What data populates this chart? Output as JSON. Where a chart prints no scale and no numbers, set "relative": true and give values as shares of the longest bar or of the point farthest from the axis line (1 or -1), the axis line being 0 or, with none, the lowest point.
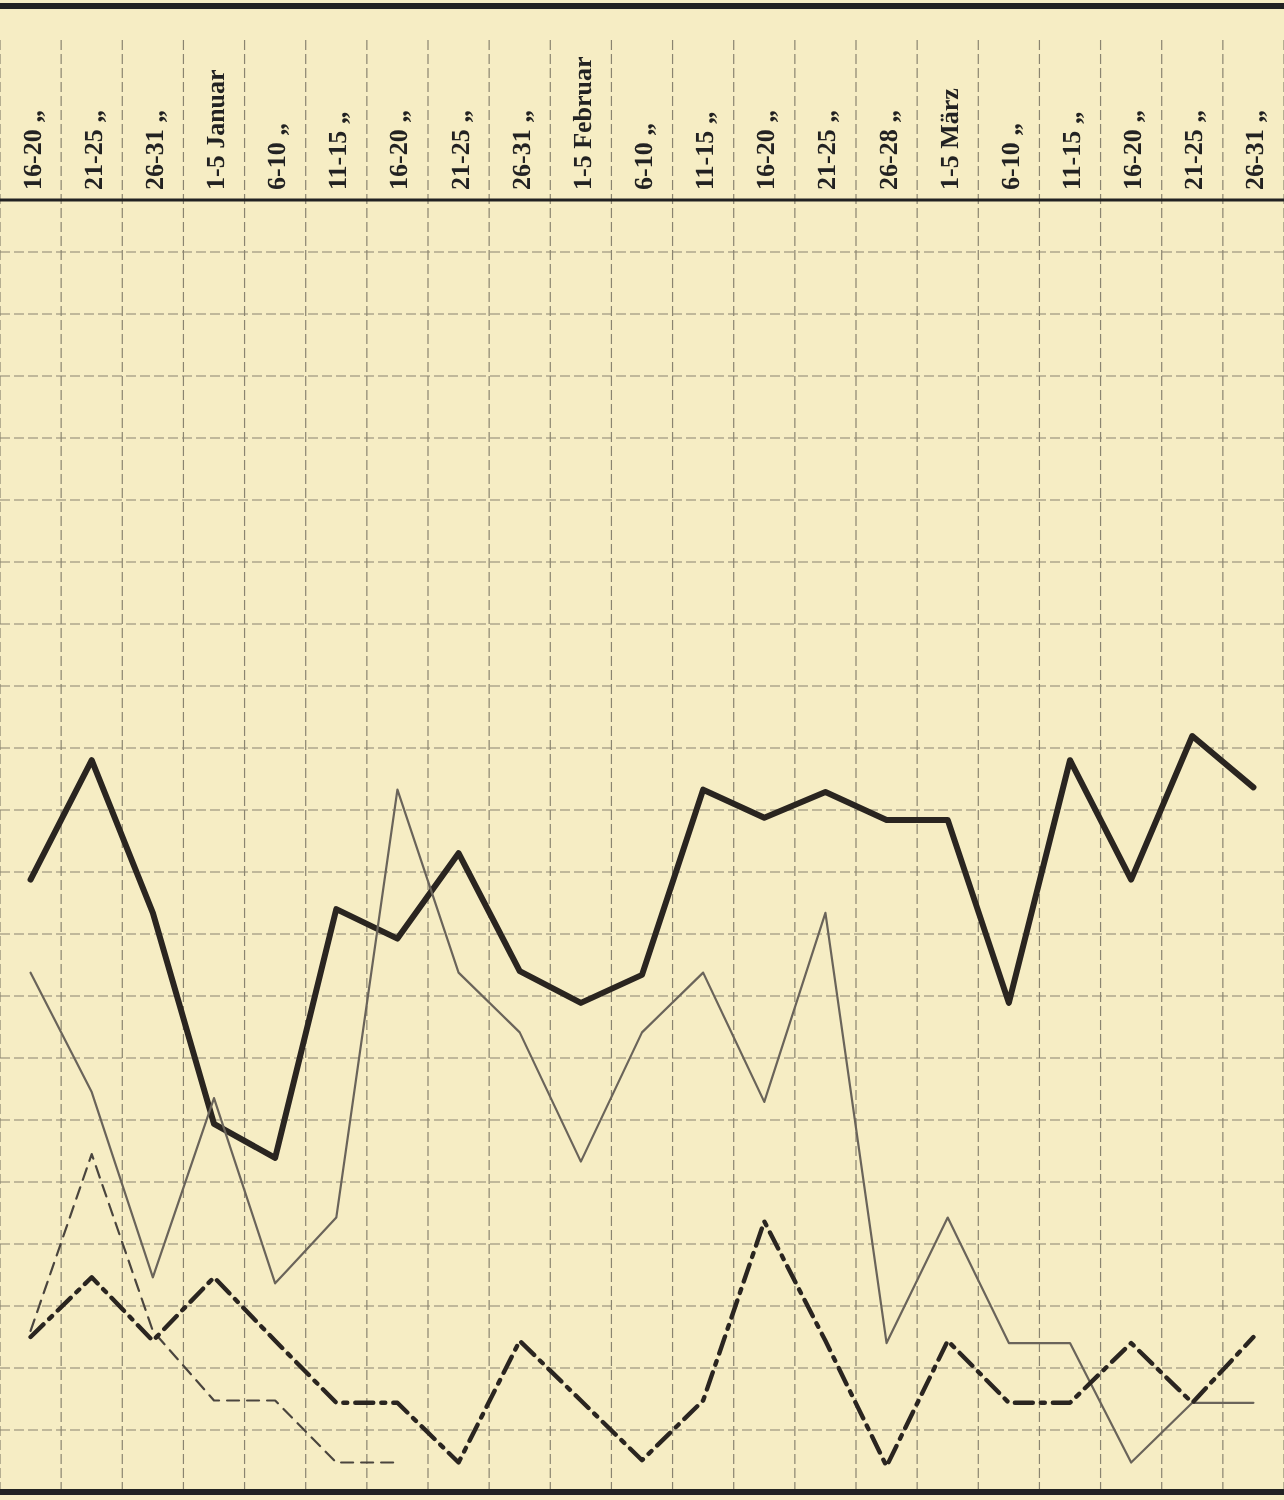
{
  "chart_data": {
    "type": "line",
    "relative": true,
    "grid": true,
    "categories": [
      "16-20 „",
      "21-25 „",
      "26-31 „",
      "1-5 Januar",
      "6-10 „",
      "11-15 „",
      "16-20 „",
      "21-25 „",
      "26-31 „",
      "1-5 Februar",
      "6-10 „",
      "11-15 „",
      "16-20 „",
      "21-25 „",
      "26-28 „",
      "1-5 März",
      "6-10 „",
      "11-15 „",
      "16-20 „",
      "21-25 „",
      "26-31 „"
    ],
    "series": [
      {
        "color": "#2a2520",
        "line_style": "solid",
        "values": [
          0.81,
          0.968,
          0.766,
          0.487,
          0.442,
          0.771,
          0.732,
          0.845,
          0.689,
          0.647,
          0.684,
          0.929,
          0.892,
          0.926,
          0.889,
          0.889,
          0.647,
          0.968,
          0.81,
          1,
          0.932
        ]
      },
      {
        "color": "#6a645a",
        "line_style": "solid",
        "values": [
          0.687,
          0.529,
          0.284,
          0.521,
          0.276,
          0.363,
          0.929,
          0.687,
          0.608,
          0.437,
          0.608,
          0.687,
          0.516,
          0.766,
          0.197,
          0.363,
          0.197,
          0.197,
          0.039,
          0.118,
          0.118
        ]
      },
      {
        "color": "#4a453e",
        "line_style": "dashed",
        "values": [
          0.213,
          0.447,
          0.213,
          0.121,
          0.121,
          0.039,
          0.039,
          null,
          null,
          null,
          null,
          null,
          null,
          null,
          null,
          null,
          null,
          null,
          null,
          null,
          null
        ]
      },
      {
        "color": "#2a2520",
        "line_style": "dashdot",
        "values": [
          0.205,
          0.284,
          0.2,
          0.284,
          0.2,
          0.118,
          0.118,
          0.039,
          0.2,
          0.121,
          0.042,
          0.121,
          0.358,
          0.2,
          0.034,
          0.2,
          0.118,
          0.118,
          0.197,
          0.118,
          0.205
        ]
      }
    ]
  }
}
